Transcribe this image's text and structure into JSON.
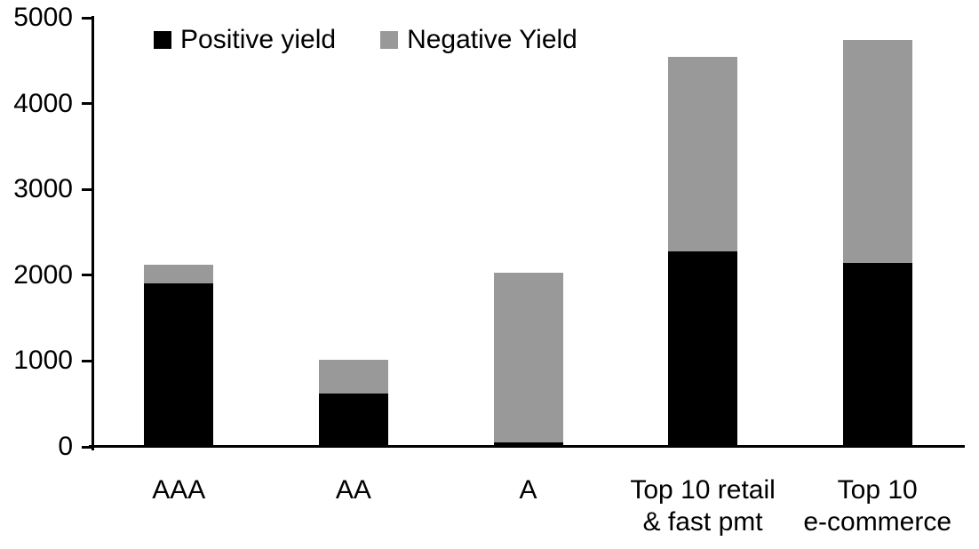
{
  "chart_data": {
    "type": "bar",
    "stacked": true,
    "title": "",
    "xlabel": "",
    "ylabel": "",
    "categories": [
      "AAA",
      "AA",
      "A",
      "Top 10 retail\n& fast pmt",
      "Top 10\ne-commerce"
    ],
    "series": [
      {
        "name": "Positive yield",
        "color": "#000000",
        "values": [
          1900,
          620,
          50,
          2280,
          2140
        ]
      },
      {
        "name": "Negative Yield",
        "color": "#999999",
        "values": [
          220,
          390,
          1980,
          2260,
          2600
        ]
      }
    ],
    "totals": [
      2120,
      1010,
      2030,
      4540,
      4740
    ],
    "ylim": [
      0,
      5000
    ],
    "yticks": [
      0,
      1000,
      2000,
      3000,
      4000,
      5000
    ],
    "grid": false,
    "legend_position": "top-left-inside"
  },
  "legend": {
    "items": [
      {
        "label": "Positive yield",
        "color": "#000000"
      },
      {
        "label": "Negative Yield",
        "color": "#999999"
      }
    ]
  }
}
